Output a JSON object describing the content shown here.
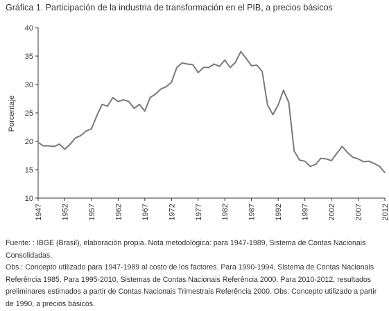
{
  "title": "Gráfica 1. Participación de la industria de transformación en el PIB, a precios básicos",
  "footnote": {
    "source": "Fuente: : IBGE (Brasil), elaboración propia. Nota metodológica: para 1947-1989, Sistema de Contas Nacionais Consolidadas.",
    "obs": "Obs.: Concepto utilizado para 1947-1989 al costo de los factores. Para 1990-1994, Sistema de Contas Nacionais Referência 1985. Para 1995-2010, Sistemas de Contas Nacionais Referência 2000. Para 2010-2012, resultados preliminares estimados a partir de Contas Nacionais Trimestrais Referência 2000. Obs: Concepto utilizado a partir de 1990, a precios básicos."
  },
  "chart_data": {
    "type": "line",
    "title": "Gráfica 1. Participación de la industria de transformación en el PIB, a precios básicos",
    "xlabel": "",
    "ylabel": "Porcentaje",
    "xlim": [
      1947,
      2012
    ],
    "ylim": [
      10,
      40
    ],
    "yticks": [
      10,
      15,
      20,
      25,
      30,
      35,
      40
    ],
    "xticks": [
      1947,
      1952,
      1957,
      1962,
      1967,
      1972,
      1977,
      1982,
      1987,
      1992,
      1997,
      2002,
      2007,
      2012
    ],
    "grid": false,
    "line_color": "#7a7a7a",
    "series": [
      {
        "x": [
          1947,
          1948,
          1949,
          1950,
          1951,
          1952,
          1953,
          1954,
          1955,
          1956,
          1957,
          1958,
          1959,
          1960,
          1961,
          1962,
          1963,
          1964,
          1965,
          1966,
          1967,
          1968,
          1969,
          1970,
          1971,
          1972,
          1973,
          1974,
          1975,
          1976,
          1977,
          1978,
          1979,
          1980,
          1981,
          1982,
          1983,
          1984,
          1985,
          1986,
          1987,
          1988,
          1989,
          1990,
          1991,
          1992,
          1993,
          1994,
          1995,
          1996,
          1997,
          1998,
          1999,
          2000,
          2001,
          2002,
          2003,
          2004,
          2005,
          2006,
          2007,
          2008,
          2009,
          2010,
          2011,
          2012
        ],
        "values": [
          19.8,
          19.2,
          19.2,
          19.1,
          19.5,
          18.6,
          19.5,
          20.6,
          21.0,
          21.8,
          22.2,
          24.5,
          26.5,
          26.2,
          27.7,
          27.0,
          27.3,
          27.0,
          25.8,
          26.5,
          25.3,
          27.7,
          28.3,
          29.2,
          29.6,
          30.4,
          33.0,
          33.8,
          33.6,
          33.5,
          32.1,
          33.0,
          33.0,
          33.6,
          33.2,
          34.3,
          33.0,
          33.9,
          35.8,
          34.6,
          33.3,
          33.4,
          32.3,
          26.4,
          24.7,
          26.4,
          29.0,
          26.8,
          18.3,
          16.7,
          16.5,
          15.6,
          15.9,
          17.0,
          16.9,
          16.6,
          17.9,
          19.1,
          18.0,
          17.2,
          16.9,
          16.4,
          16.5,
          16.1,
          15.6,
          14.5
        ]
      }
    ]
  }
}
